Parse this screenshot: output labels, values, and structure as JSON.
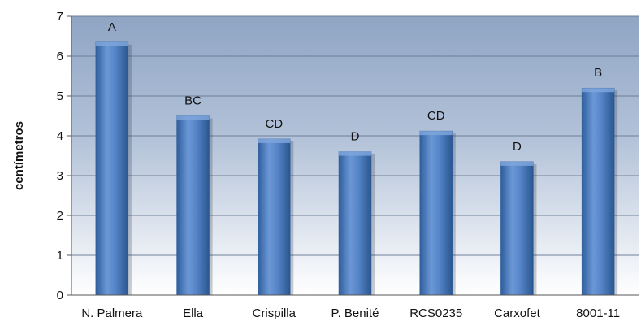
{
  "chart_data": {
    "type": "bar",
    "title": "",
    "xlabel": "",
    "ylabel": "centímetros",
    "ylim": [
      0,
      7
    ],
    "yticks": [
      "0",
      "1",
      "2",
      "3",
      "4",
      "5",
      "6",
      "7"
    ],
    "grid": true,
    "categories": [
      "N. Palmera",
      "Ella",
      "Crispilla",
      "P. Benité",
      "RCS0235",
      "Carxofet",
      "8001-11"
    ],
    "values": [
      6.35,
      4.5,
      3.92,
      3.6,
      4.12,
      3.35,
      5.2
    ],
    "data_labels": [
      "A",
      "BC",
      "CD",
      "D",
      "CD",
      "D",
      "B"
    ],
    "colors": {
      "bar": "#4f81bd",
      "bar_light": "#7fa6dc",
      "bar_dark": "#2f5e9c",
      "plot_top": "#8fa5c4",
      "plot_bottom": "#ffffff",
      "grid": "#6e7f99"
    }
  }
}
